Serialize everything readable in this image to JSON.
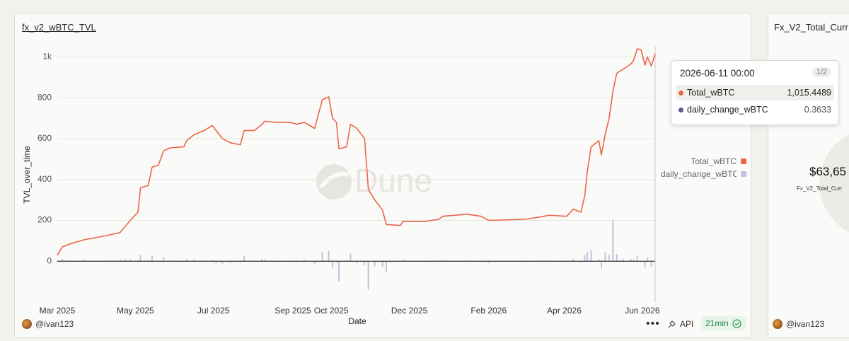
{
  "chart_data": {
    "type": "line-bar",
    "title": "fx_v2_wBTC_TVL",
    "y_label": "TVL_over_time",
    "x_label": "Date",
    "x": [
      "2025-03-01",
      "2025-03-05",
      "2025-03-11",
      "2025-03-22",
      "2025-04-08",
      "2025-04-19",
      "2025-04-23",
      "2025-04-27",
      "2025-05-03",
      "2025-05-05",
      "2025-05-11",
      "2025-05-14",
      "2025-05-19",
      "2025-05-23",
      "2025-05-28",
      "2025-06-08",
      "2025-06-10",
      "2025-06-16",
      "2025-06-24",
      "2025-06-30",
      "2025-07-03",
      "2025-07-08",
      "2025-07-14",
      "2025-07-22",
      "2025-07-25",
      "2025-08-02",
      "2025-08-08",
      "2025-08-10",
      "2025-08-19",
      "2025-08-30",
      "2025-09-04",
      "2025-09-10",
      "2025-09-18",
      "2025-09-24",
      "2025-09-29",
      "2025-10-02",
      "2025-10-05",
      "2025-10-07",
      "2025-10-13",
      "2025-10-16",
      "2025-10-21",
      "2025-10-27",
      "2025-10-30",
      "2025-11-04",
      "2025-11-10",
      "2025-11-13",
      "2025-11-24",
      "2025-11-26",
      "2025-12-13",
      "2025-12-24",
      "2025-12-27",
      "2026-01-15",
      "2026-01-26",
      "2026-02-01",
      "2026-03-01",
      "2026-03-12",
      "2026-03-20",
      "2026-04-03",
      "2026-04-08",
      "2026-04-14",
      "2026-04-17",
      "2026-04-19",
      "2026-04-22",
      "2026-04-28",
      "2026-04-30",
      "2026-05-03",
      "2026-05-06",
      "2026-05-09",
      "2026-05-12",
      "2026-05-17",
      "2026-05-23",
      "2026-05-25",
      "2026-05-28",
      "2026-05-31",
      "2026-06-03",
      "2026-06-05",
      "2026-06-08",
      "2026-06-11"
    ],
    "series": [
      {
        "name": "Total_wBTC",
        "kind": "line",
        "color": "#ec6547",
        "values": [
          30,
          70,
          85,
          105,
          125,
          140,
          170,
          200,
          240,
          360,
          370,
          460,
          470,
          540,
          555,
          560,
          590,
          620,
          640,
          665,
          640,
          600,
          580,
          570,
          640,
          640,
          670,
          685,
          680,
          680,
          670,
          680,
          650,
          790,
          805,
          700,
          680,
          550,
          560,
          670,
          650,
          600,
          350,
          300,
          250,
          180,
          175,
          195,
          195,
          205,
          220,
          230,
          220,
          200,
          205,
          215,
          225,
          220,
          255,
          240,
          320,
          440,
          560,
          590,
          520,
          620,
          700,
          830,
          920,
          940,
          965,
          980,
          1040,
          1035,
          960,
          1000,
          955,
          1015.4489
        ]
      },
      {
        "name": "daily_change_wBTC",
        "kind": "bar",
        "color": "#c4c2dd",
        "values": [
          5,
          12,
          4,
          6,
          3,
          8,
          10,
          9,
          6,
          30,
          4,
          25,
          3,
          20,
          5,
          2,
          10,
          8,
          4,
          6,
          -10,
          -15,
          -8,
          -5,
          25,
          3,
          12,
          8,
          -3,
          2,
          -5,
          6,
          -12,
          45,
          50,
          -35,
          -8,
          -100,
          4,
          38,
          -10,
          -20,
          -140,
          -25,
          -30,
          -50,
          -3,
          8,
          2,
          3,
          6,
          4,
          -5,
          -8,
          2,
          4,
          3,
          -3,
          12,
          -6,
          30,
          45,
          55,
          10,
          -35,
          45,
          30,
          200,
          35,
          10,
          12,
          8,
          25,
          -3,
          -30,
          18,
          -25,
          0.3633
        ]
      }
    ],
    "xlim": [
      "2025-03-01",
      "2026-06-11"
    ],
    "xticks": [
      {
        "value": "2025-03-01",
        "label": "Mar 2025"
      },
      {
        "value": "2025-05-01",
        "label": "May 2025"
      },
      {
        "value": "2025-07-01",
        "label": "Jul 2025"
      },
      {
        "value": "2025-09-01",
        "label": "Sep 2025"
      },
      {
        "value": "2025-10-01",
        "label": "Oct 2025"
      },
      {
        "value": "2025-12-01",
        "label": "Dec 2025"
      },
      {
        "value": "2026-02-01",
        "label": "Feb 2026"
      },
      {
        "value": "2026-04-01",
        "label": "Apr 2026"
      },
      {
        "value": "2026-06-01",
        "label": "Jun 2026"
      }
    ],
    "ylim": [
      -200,
      1050
    ],
    "yticks": [
      0,
      200,
      400,
      600,
      800,
      {
        "value": 1000,
        "label": "1k"
      }
    ],
    "grid": true,
    "legend": "right",
    "watermark": "Dune",
    "tooltip": {
      "title": "2026-06-11 00:00",
      "pager": "1/2",
      "values": [
        "1,015.4489",
        "0.3633"
      ]
    }
  },
  "footer": {
    "author": "@ivan123",
    "api": "API",
    "age": "21min"
  },
  "second_panel": {
    "title": "Fx_V2_Total_Curr",
    "value": "$63,65",
    "label": "Fx_V2_Total_Curr",
    "author": "@ivan123"
  }
}
